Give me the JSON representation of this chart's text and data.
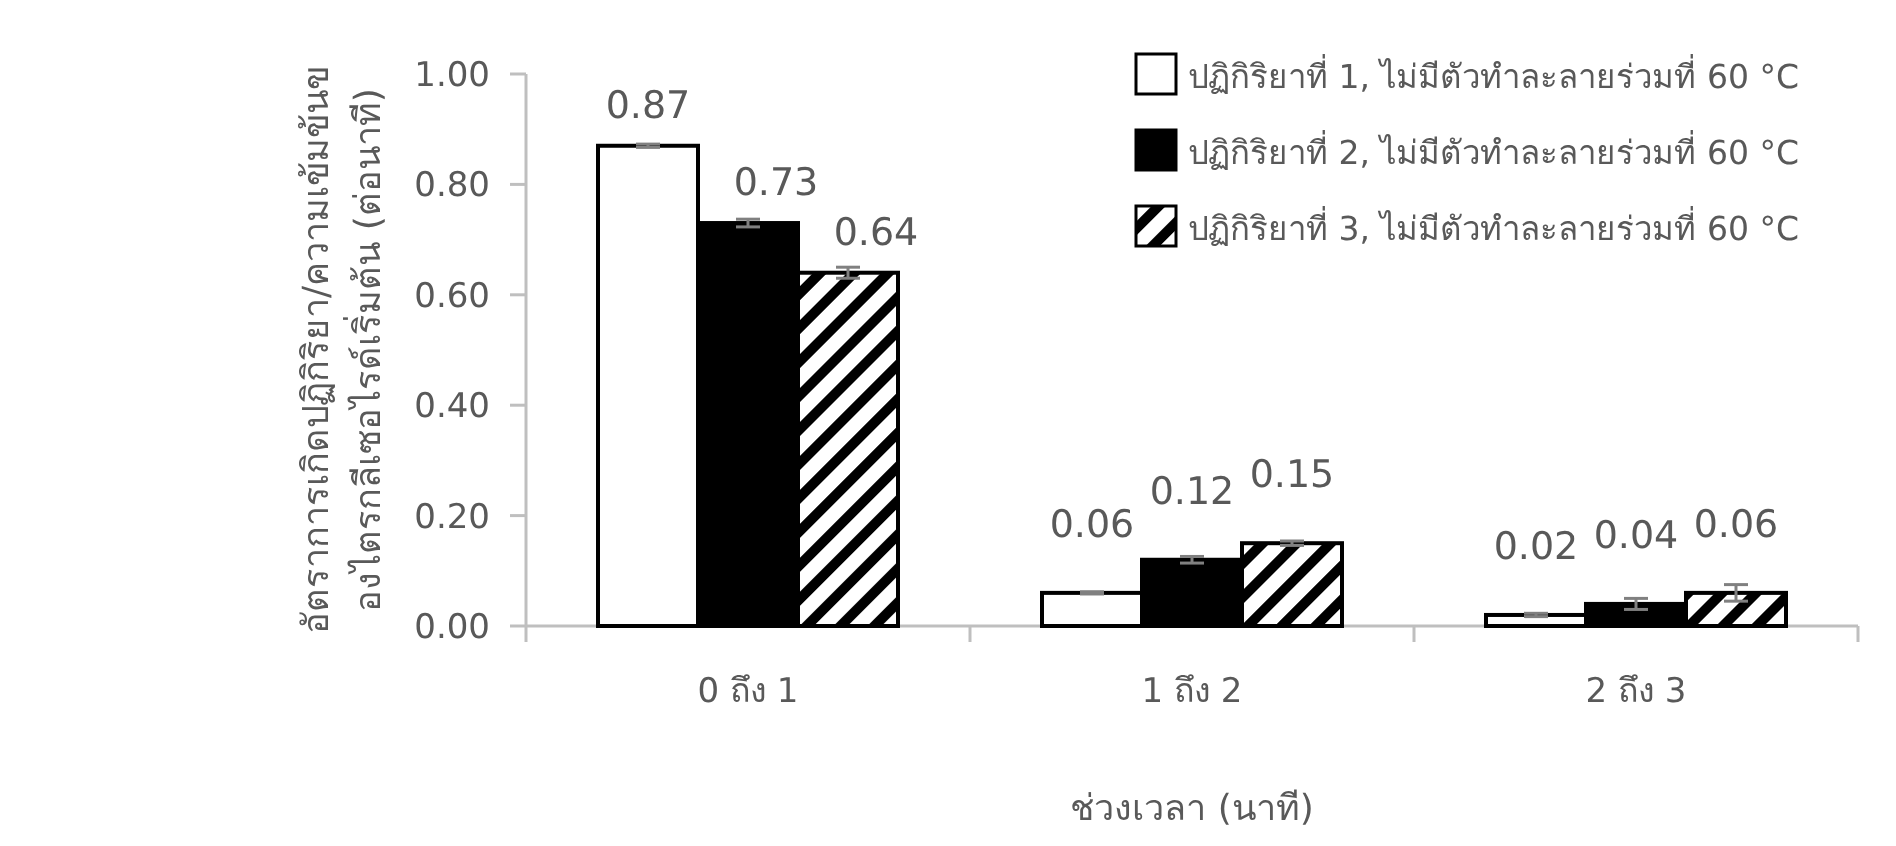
{
  "chart_data": {
    "type": "bar",
    "xlabel": "ช่วงเวลา (นาที)",
    "ylabel": "อัตราการเกิดปฏิกิริยา/ความเข้มข้นของไตรกลีเซอไรด์เริ่มต้น (ต่อนาที)",
    "categories": [
      "0 ถึง 1",
      "1 ถึง 2",
      "2 ถึง 3"
    ],
    "series": [
      {
        "name": "ปฏิกิริยาที่ 1, ไม่มีตัวทำละลายร่วมที่ 60 °C",
        "color": "#ffffff",
        "values": [
          0.87,
          0.06,
          0.02
        ],
        "errors": [
          0.003,
          0.002,
          0.003
        ]
      },
      {
        "name": "ปฏิกิริยาที่ 2, ไม่มีตัวทำละลายร่วมที่ 60 °C",
        "color": "#000000",
        "values": [
          0.73,
          0.12,
          0.04
        ],
        "errors": [
          0.007,
          0.006,
          0.01
        ]
      },
      {
        "name": "ปฏิกิริยาที่ 3, ไม่มีตัวทำละลายร่วมที่ 60 °C",
        "color": "#000000",
        "values": [
          0.64,
          0.15,
          0.06
        ],
        "errors": [
          0.01,
          0.004,
          0.015
        ]
      }
    ],
    "ylim": [
      0,
      1
    ],
    "yticks": [
      {
        "value": 0,
        "label": "0.00"
      },
      {
        "value": 0.2,
        "label": "0.20"
      },
      {
        "value": 0.4,
        "label": "0.40"
      },
      {
        "value": 0.6,
        "label": "0.60"
      },
      {
        "value": 0.8,
        "label": "0.80"
      },
      {
        "value": 1,
        "label": "1.00"
      }
    ],
    "data_labels": true,
    "legend": "top right",
    "grid": false
  }
}
